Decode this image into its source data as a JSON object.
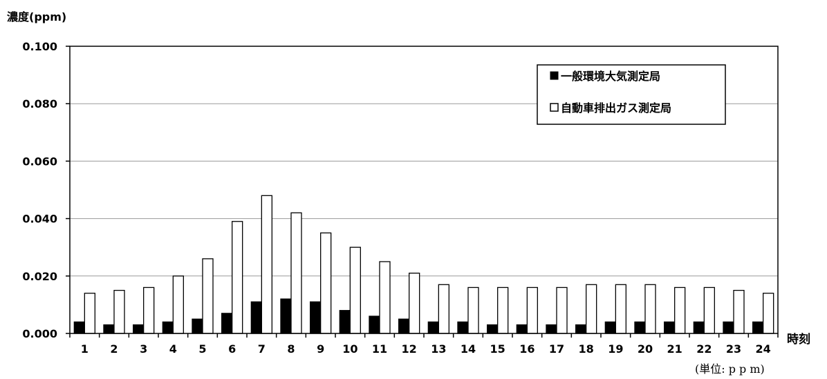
{
  "chart_data": {
    "type": "bar",
    "ylabel": "濃度(ppm)",
    "xlabel": "時刻",
    "unit_note": "(単位: p p m)",
    "ylim": [
      0,
      0.1
    ],
    "yticks": [
      "0.000",
      "0.020",
      "0.040",
      "0.060",
      "0.080",
      "0.100"
    ],
    "grid": true,
    "legend_position": "top-right",
    "categories": [
      "1",
      "2",
      "3",
      "4",
      "5",
      "6",
      "7",
      "8",
      "9",
      "10",
      "11",
      "12",
      "13",
      "14",
      "15",
      "16",
      "17",
      "18",
      "19",
      "20",
      "21",
      "22",
      "23",
      "24"
    ],
    "series": [
      {
        "name": "一般環境大気測定局",
        "color": "#000000",
        "values": [
          0.004,
          0.003,
          0.003,
          0.004,
          0.005,
          0.007,
          0.011,
          0.012,
          0.011,
          0.008,
          0.006,
          0.005,
          0.004,
          0.004,
          0.003,
          0.003,
          0.003,
          0.003,
          0.004,
          0.004,
          0.004,
          0.004,
          0.004,
          0.004
        ]
      },
      {
        "name": "自動車排出ガス測定局",
        "color": "#ffffff",
        "values": [
          0.014,
          0.015,
          0.016,
          0.02,
          0.026,
          0.039,
          0.048,
          0.042,
          0.035,
          0.03,
          0.025,
          0.021,
          0.017,
          0.016,
          0.016,
          0.016,
          0.016,
          0.017,
          0.017,
          0.017,
          0.016,
          0.016,
          0.015,
          0.014
        ]
      }
    ]
  }
}
